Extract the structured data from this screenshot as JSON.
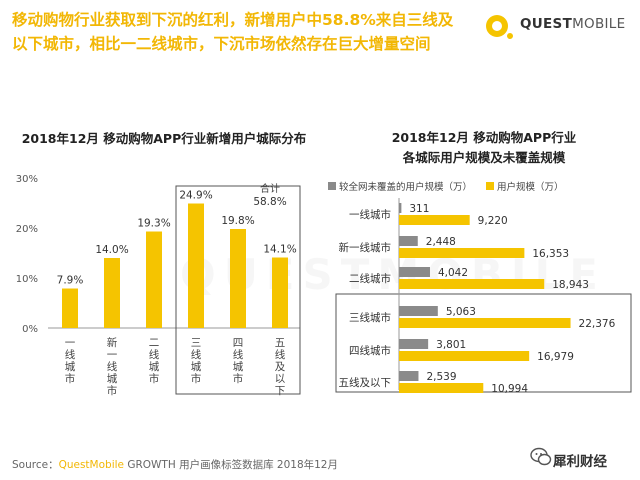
{
  "headline": {
    "line1": "移动购物行业获取到下沉的红利，新增用户中58.8%来自三线及",
    "line2": "以下城市，相比一二线城市，下沉市场依然存在巨大增量空间"
  },
  "logo": {
    "brand_bold": "QUEST",
    "brand_rest": "MOBILE"
  },
  "watermark": "QUESTMOBILE",
  "colors": {
    "accent": "#f5c400",
    "gray_bar": "#8a8a8a",
    "headline": "#f2b705"
  },
  "chart_data": [
    {
      "type": "bar",
      "title": "2018年12月 移动购物APP行业新增用户城际分布",
      "categories": [
        "一线城市",
        "新一线城市",
        "二线城市",
        "三线城市",
        "四线城市",
        "五线及以下"
      ],
      "values": [
        7.9,
        14.0,
        19.3,
        24.9,
        19.8,
        14.1
      ],
      "value_labels": [
        "7.9%",
        "14.0%",
        "19.3%",
        "24.9%",
        "19.8%",
        "14.1%"
      ],
      "yticks": [
        "0%",
        "10%",
        "20%",
        "30%"
      ],
      "ylim": [
        0,
        30
      ],
      "annotation": {
        "label": "合计",
        "value": "58.8%"
      },
      "xlabel": "",
      "ylabel": ""
    },
    {
      "type": "bar",
      "orientation": "horizontal",
      "title_line1": "2018年12月 移动购物APP行业",
      "title_line2": "各城际用户规模及未覆盖规模",
      "categories": [
        "一线城市",
        "新一线城市",
        "二线城市",
        "三线城市",
        "四线城市",
        "五线及以下"
      ],
      "series": [
        {
          "name": "较全网未覆盖的用户规模（万）",
          "values": [
            311,
            2448,
            4042,
            5063,
            3801,
            2539
          ],
          "labels": [
            "311",
            "2,448",
            "4,042",
            "5,063",
            "3,801",
            "2,539"
          ]
        },
        {
          "name": "用户规模（万）",
          "values": [
            9220,
            16353,
            18943,
            22376,
            16979,
            10994
          ],
          "labels": [
            "9,220",
            "16,353",
            "18,943",
            "22,376",
            "16,979",
            "10,994"
          ]
        }
      ],
      "xlim": [
        0,
        24000
      ]
    }
  ],
  "source": {
    "prefix": "Source：",
    "brand": "QuestMobile",
    "suffix": "GROWTH 用户画像标签数据库 2018年12月"
  },
  "wechat": {
    "label": "犀利财经"
  }
}
